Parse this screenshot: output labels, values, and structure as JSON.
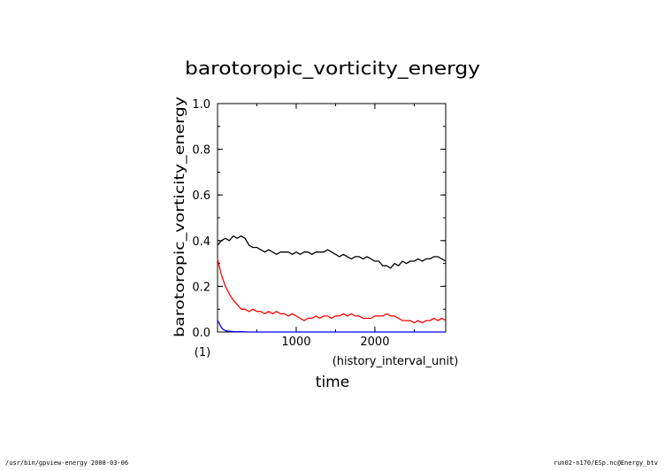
{
  "chart_data": {
    "type": "line",
    "title": "barotoropic_vorticity_energy",
    "ylabel": "barotoropic_vorticity_energy",
    "yunit": "(1)",
    "xlabel": "time",
    "xunit": "(history_interval_unit)",
    "xlim": [
      0,
      2900
    ],
    "ylim": [
      0.0,
      1.0
    ],
    "xticks": [
      1000,
      2000
    ],
    "yticks": [
      0.0,
      0.2,
      0.4,
      0.6,
      0.8,
      1.0
    ],
    "ytick_labels": [
      "0.0",
      "0.2",
      "0.4",
      "0.6",
      "0.8",
      "1.0"
    ],
    "xtick_labels": [
      "1000",
      "2000"
    ],
    "series": [
      {
        "color": "#000000",
        "x": [
          0,
          50,
          100,
          150,
          200,
          250,
          300,
          350,
          400,
          450,
          500,
          550,
          600,
          650,
          700,
          750,
          800,
          850,
          900,
          950,
          1000,
          1050,
          1100,
          1150,
          1200,
          1250,
          1300,
          1350,
          1400,
          1450,
          1500,
          1550,
          1600,
          1650,
          1700,
          1750,
          1800,
          1850,
          1900,
          1950,
          2000,
          2050,
          2100,
          2150,
          2200,
          2250,
          2300,
          2350,
          2400,
          2450,
          2500,
          2550,
          2600,
          2650,
          2700,
          2750,
          2800,
          2850,
          2900
        ],
        "y": [
          0.38,
          0.4,
          0.41,
          0.4,
          0.42,
          0.41,
          0.42,
          0.41,
          0.38,
          0.37,
          0.37,
          0.36,
          0.35,
          0.36,
          0.35,
          0.34,
          0.35,
          0.35,
          0.35,
          0.34,
          0.35,
          0.34,
          0.35,
          0.35,
          0.34,
          0.35,
          0.35,
          0.35,
          0.36,
          0.35,
          0.34,
          0.33,
          0.34,
          0.33,
          0.32,
          0.33,
          0.33,
          0.32,
          0.33,
          0.32,
          0.31,
          0.31,
          0.29,
          0.29,
          0.28,
          0.3,
          0.29,
          0.31,
          0.3,
          0.31,
          0.31,
          0.32,
          0.31,
          0.32,
          0.32,
          0.33,
          0.33,
          0.32,
          0.31
        ]
      },
      {
        "color": "#ff0000",
        "x": [
          0,
          20,
          40,
          60,
          80,
          100,
          130,
          160,
          200,
          250,
          300,
          350,
          400,
          450,
          500,
          550,
          600,
          650,
          700,
          750,
          800,
          850,
          900,
          950,
          1000,
          1050,
          1100,
          1150,
          1200,
          1250,
          1300,
          1350,
          1400,
          1450,
          1500,
          1550,
          1600,
          1650,
          1700,
          1750,
          1800,
          1850,
          1900,
          1950,
          2000,
          2050,
          2100,
          2150,
          2200,
          2250,
          2300,
          2350,
          2400,
          2450,
          2500,
          2550,
          2600,
          2650,
          2700,
          2750,
          2800,
          2850,
          2900
        ],
        "y": [
          0.32,
          0.29,
          0.26,
          0.24,
          0.22,
          0.2,
          0.18,
          0.16,
          0.14,
          0.12,
          0.1,
          0.1,
          0.09,
          0.1,
          0.09,
          0.09,
          0.08,
          0.09,
          0.08,
          0.09,
          0.08,
          0.08,
          0.07,
          0.08,
          0.07,
          0.06,
          0.05,
          0.06,
          0.06,
          0.07,
          0.06,
          0.07,
          0.07,
          0.06,
          0.07,
          0.07,
          0.08,
          0.07,
          0.08,
          0.07,
          0.07,
          0.06,
          0.06,
          0.06,
          0.07,
          0.07,
          0.07,
          0.08,
          0.07,
          0.07,
          0.06,
          0.05,
          0.05,
          0.05,
          0.04,
          0.05,
          0.04,
          0.05,
          0.05,
          0.06,
          0.05,
          0.06,
          0.05
        ]
      },
      {
        "color": "#0000ff",
        "x": [
          0,
          20,
          40,
          60,
          80,
          100,
          130,
          160,
          200,
          250,
          300,
          400,
          600,
          1000,
          1500,
          2000,
          2500,
          2900
        ],
        "y": [
          0.05,
          0.04,
          0.025,
          0.015,
          0.01,
          0.006,
          0.004,
          0.003,
          0.002,
          0.001,
          0.001,
          0.0,
          0.0,
          0.0,
          0.0,
          0.0,
          0.0,
          0.0
        ]
      }
    ]
  },
  "footer": {
    "left": "/usr/bin/gpview-energy  2008-03-06",
    "right": "run02-n170/ESp.nc@Energy_btv"
  }
}
